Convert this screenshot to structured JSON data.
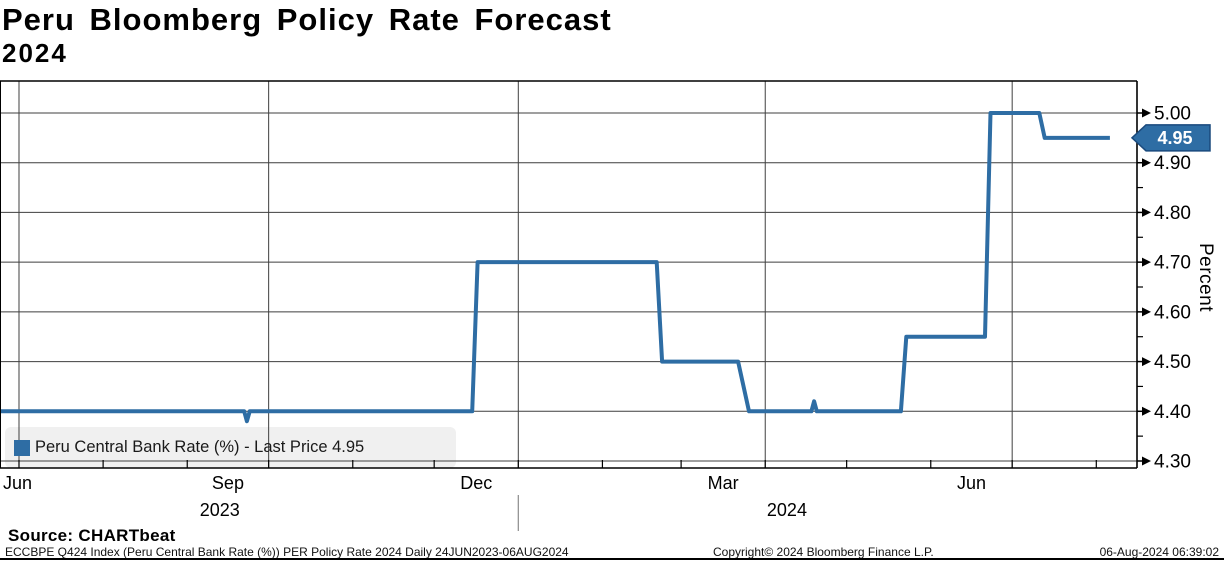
{
  "header": {
    "title": "Peru Bloomberg Policy Rate Forecast",
    "subtitle": "2024"
  },
  "legend": {
    "marker_color": "#2e6da4",
    "label": "Peru Central Bank Rate (%) - Last Price 4.95"
  },
  "y_axis": {
    "label": "Percent",
    "last_price_badge": "4.95"
  },
  "footer": {
    "source": "Source: CHARTbeat",
    "description": "ECCBPE Q424 Index (Peru Central Bank Rate (%)) PER Policy Rate 2024  Daily 24JUN2023-06AUG2024",
    "copyright": "Copyright© 2024 Bloomberg Finance L.P.",
    "timestamp": "06-Aug-2024 06:39:02"
  },
  "colors": {
    "line": "#2e6da4",
    "badge_fill": "#2e6da4",
    "badge_stroke": "#1a4a7d",
    "grid": "#3f3f3f",
    "axis": "#000000",
    "legend_bg": "#f0f0f0",
    "year_separator": "#8a8a8a"
  },
  "chart_data": {
    "type": "line",
    "title": "Peru Bloomberg Policy Rate Forecast 2024",
    "ylabel": "Percent",
    "grid": true,
    "legend_position": "bottom-left",
    "ylim": [
      4.286,
      5.066
    ],
    "y_major_ticks": [
      4.3,
      4.4,
      4.5,
      4.6,
      4.7,
      4.8,
      4.9,
      5.0
    ],
    "y_minor_ticks": [
      4.35,
      4.45,
      4.55,
      4.65,
      4.75,
      4.85,
      4.95
    ],
    "x_range": [
      "2023-06-24",
      "2024-08-16"
    ],
    "x_month_ticks": [
      "2023-07-01",
      "2023-08-01",
      "2023-09-01",
      "2023-10-01",
      "2023-11-01",
      "2023-12-01",
      "2024-01-01",
      "2024-02-01",
      "2024-03-01",
      "2024-04-01",
      "2024-05-01",
      "2024-06-01",
      "2024-07-01",
      "2024-08-01"
    ],
    "x_major_gridlines": [
      {
        "date": "2023-07-01",
        "label": "Jun",
        "label_month_start": "2023-06-24"
      },
      {
        "date": "2023-10-01",
        "label": "Sep",
        "label_month_start": "2023-09-01"
      },
      {
        "date": "2024-01-01",
        "label": "Dec",
        "label_month_start": "2023-12-01"
      },
      {
        "date": "2024-04-01",
        "label": "Mar",
        "label_month_start": "2024-03-01"
      },
      {
        "date": "2024-07-01",
        "label": "Jun",
        "label_month_start": "2024-06-01"
      }
    ],
    "year_labels": [
      {
        "label": "2023",
        "date": "2023-09-13"
      },
      {
        "label": "2024",
        "date": "2024-04-09"
      }
    ],
    "year_separator_date": "2024-01-01",
    "series": [
      {
        "name": "Peru Central Bank Rate (%)",
        "last_price": 4.95,
        "points": [
          [
            "2023-06-24",
            4.4
          ],
          [
            "2023-09-22",
            4.4
          ],
          [
            "2023-09-23",
            4.38
          ],
          [
            "2023-09-24",
            4.4
          ],
          [
            "2023-12-15",
            4.4
          ],
          [
            "2023-12-17",
            4.7
          ],
          [
            "2024-02-21",
            4.7
          ],
          [
            "2024-02-23",
            4.5
          ],
          [
            "2024-03-22",
            4.5
          ],
          [
            "2024-03-26",
            4.4
          ],
          [
            "2024-04-18",
            4.4
          ],
          [
            "2024-04-19",
            4.42
          ],
          [
            "2024-04-20",
            4.4
          ],
          [
            "2024-05-21",
            4.4
          ],
          [
            "2024-05-23",
            4.55
          ],
          [
            "2024-06-21",
            4.55
          ],
          [
            "2024-06-23",
            5.0
          ],
          [
            "2024-07-11",
            5.0
          ],
          [
            "2024-07-13",
            4.95
          ],
          [
            "2024-08-06",
            4.95
          ]
        ]
      }
    ]
  }
}
